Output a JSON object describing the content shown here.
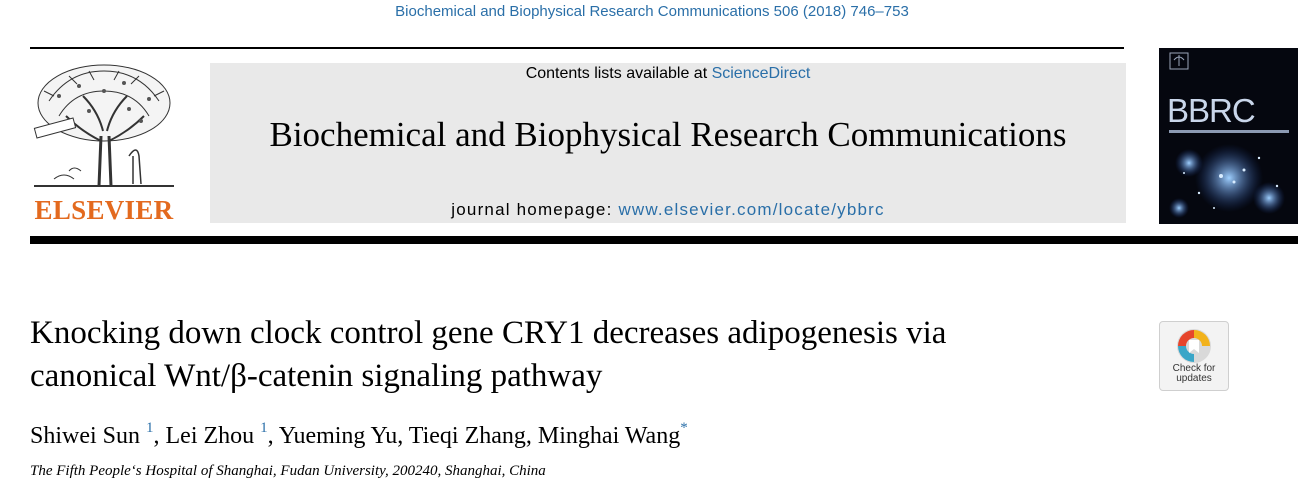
{
  "citation": "Biochemical and Biophysical Research Communications 506 (2018) 746–753",
  "publisher": {
    "name": "ELSEVIER",
    "logo_icon": "elsevier-tree-icon",
    "brand_color": "#e36a1f"
  },
  "journal_header": {
    "contents_prefix": "Contents lists available at ",
    "contents_link": "ScienceDirect",
    "journal_title": "Biochemical and Biophysical Research Communications",
    "homepage_prefix": "journal homepage: ",
    "homepage_link": "www.elsevier.com/locate/ybbrc",
    "box_color": "#e9e9e9",
    "link_color": "#2a6fa8"
  },
  "cover": {
    "title": "BBRC",
    "background": "#05070f"
  },
  "article": {
    "title_line1": "Knocking down clock control gene CRY1 decreases adipogenesis via",
    "title_line2": "canonical Wnt/β-catenin signaling pathway",
    "authors": [
      {
        "name": "Shiwei Sun",
        "mark": "1"
      },
      {
        "name": "Lei Zhou",
        "mark": "1"
      },
      {
        "name": "Yueming Yu",
        "mark": ""
      },
      {
        "name": "Tieqi Zhang",
        "mark": ""
      },
      {
        "name": "Minghai Wang",
        "mark": "*"
      }
    ],
    "separator": ", ",
    "affiliation": "The Fifth People‘s Hospital of Shanghai, Fudan University, 200240, Shanghai, China"
  },
  "check_updates": {
    "line1": "Check for",
    "line2": "updates",
    "icon": "check-for-updates-icon"
  }
}
